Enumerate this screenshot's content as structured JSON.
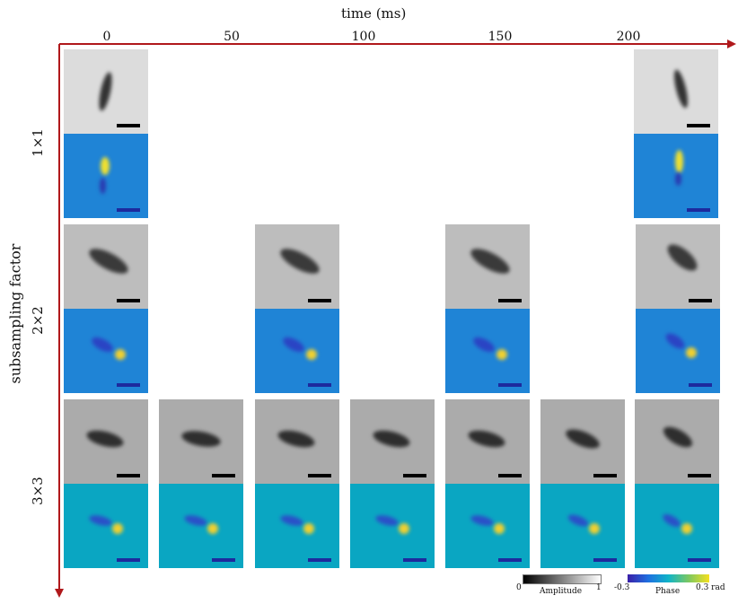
{
  "title": "time (ms)",
  "x_ticks": [
    "0",
    "50",
    "100",
    "150",
    "200"
  ],
  "y_axis_label": "subsampling factor",
  "rows": [
    "1×1",
    "2×2",
    "3×3"
  ],
  "colorbars": {
    "amplitude": {
      "min": "0",
      "label": "Amplitude",
      "max": "1"
    },
    "phase": {
      "min": "-0.3",
      "label": "Phase",
      "max": "0.3 rad"
    }
  },
  "colors": {
    "axis_arrow": "#b0181b",
    "phase_blue": "#1f84d6",
    "phase_teal": "#0aa6c2",
    "scale_bar_amplitude": "#000000",
    "scale_bar_phase": "#1d2a9e"
  }
}
